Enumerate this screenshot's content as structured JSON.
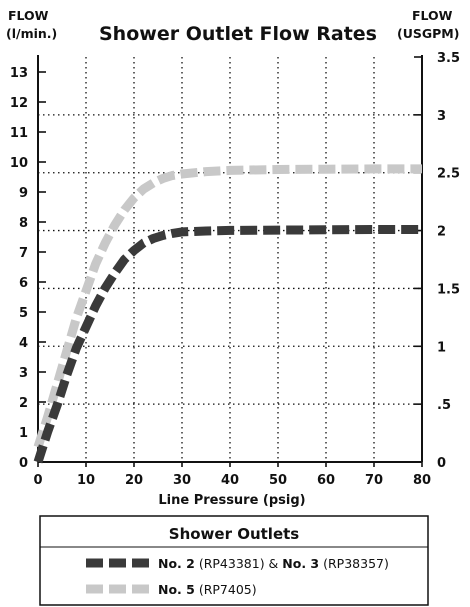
{
  "chart_data": {
    "type": "line",
    "title": "Shower Outlet Flow Rates",
    "ylabel_left": {
      "line1": "FLOW",
      "line2": "(l/min.)"
    },
    "ylabel_right": {
      "line1": "FLOW",
      "line2": "(USGPM)"
    },
    "xlabel": "Line Pressure (psig)",
    "xlim": [
      0,
      80
    ],
    "ylim_left": [
      0,
      13.5
    ],
    "ylim_right": [
      0,
      3.5
    ],
    "x_ticks": [
      "0",
      "10",
      "20",
      "30",
      "40",
      "50",
      "60",
      "70",
      "80"
    ],
    "y_ticks_left": [
      "0",
      "1",
      "2",
      "3",
      "4",
      "5",
      "6",
      "7",
      "8",
      "9",
      "10",
      "11",
      "12",
      "13"
    ],
    "y_ticks_right": [
      "0",
      ".5",
      "1",
      "1.5",
      "2",
      "2.5",
      "3",
      "3.5"
    ],
    "grid": "dotted",
    "legend": {
      "title": "Shower Outlets",
      "entries": [
        {
          "bold1": "No. 2",
          "text1": " (RP43381) & ",
          "bold2": "No. 3",
          "text2": " (RP38357)",
          "color": "#3a3a3a"
        },
        {
          "bold1": "No. 5",
          "text1": " (RP7405)",
          "bold2": "",
          "text2": "",
          "color": "#c8c8c8"
        }
      ]
    },
    "series": [
      {
        "color": "#3a3a3a",
        "x": [
          0,
          2,
          4,
          6,
          8,
          10,
          12,
          14,
          16,
          18,
          20,
          22,
          24,
          26,
          28,
          30,
          35,
          40,
          50,
          60,
          70,
          80
        ],
        "y": [
          0,
          1.0,
          1.9,
          2.9,
          3.8,
          4.5,
          5.2,
          5.8,
          6.3,
          6.75,
          7.05,
          7.3,
          7.45,
          7.55,
          7.62,
          7.67,
          7.7,
          7.72,
          7.73,
          7.74,
          7.75,
          7.75
        ]
      },
      {
        "color": "#c8c8c8",
        "x": [
          0,
          2,
          4,
          6,
          8,
          10,
          12,
          14,
          16,
          18,
          20,
          22,
          24,
          26,
          28,
          30,
          35,
          40,
          50,
          60,
          70,
          80
        ],
        "y": [
          0.5,
          1.5,
          2.6,
          3.7,
          4.8,
          5.7,
          6.6,
          7.3,
          7.9,
          8.4,
          8.8,
          9.1,
          9.3,
          9.45,
          9.55,
          9.6,
          9.68,
          9.72,
          9.75,
          9.76,
          9.77,
          9.77
        ]
      }
    ]
  }
}
